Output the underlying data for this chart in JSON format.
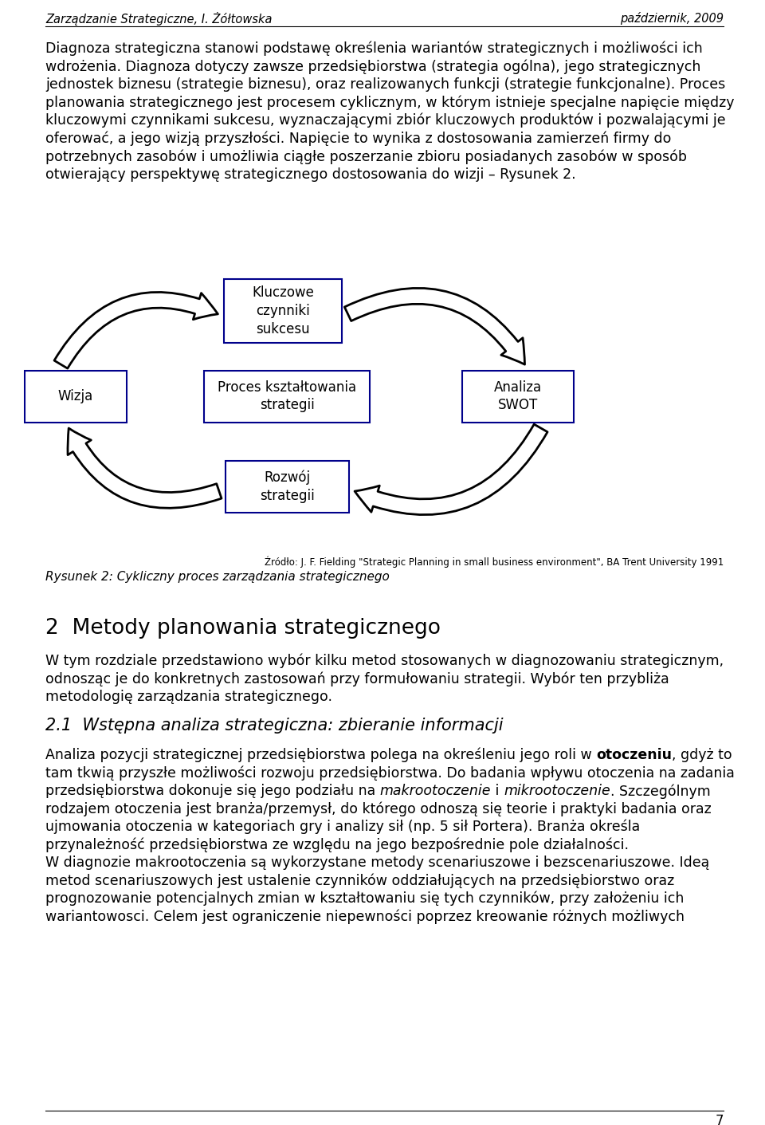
{
  "header_left": "Zarządzanie Strategiczne, I. Żółtowska",
  "header_right": "październik, 2009",
  "para1_lines": [
    "Diagnoza strategiczna stanowi podstawę określenia wariantów strategicznych i możliwości ich",
    "wdrożenia. Diagnoza dotyczy zawsze przedsiębiorstwa (strategia ogólna), jego strategicznych",
    "jednostek biznesu (strategie biznesu), oraz realizowanych funkcji (strategie funkcjonalne). Proces",
    "planowania strategicznego jest procesem cyklicznym, w którym istnieje specjalne napięcie między",
    "kluczowymi czynnikami sukcesu, wyznaczającymi zbiór kluczowych produktów i pozwalającymi je",
    "oferować, a jego wizją przyszłości. Napięcie to wynika z dostosowania zamierzeń firmy do",
    "potrzebnych zasobów i umożliwia ciągłe poszerzanie zbioru posiadanych zasobów w sposób",
    "otwierający perspektywę strategicznego dostosowania do wizji – Rysunek 2."
  ],
  "box_kluczowe": "Kluczowe\nczynniki\nsukcesu",
  "box_wizja": "Wizja",
  "box_proces": "Proces kształtowania\nstrategii",
  "box_analiza": "Analiza\nSWOT",
  "box_rozwoj": "Rozwój\nstrategii",
  "source_text": "Źródło: J. F. Fielding \"Strategic Planning in small business environment\", BA Trent University 1991",
  "caption": "Rysunek 2: Cykliczny proces zarządzania strategicznego",
  "section2_title": "2  Metody planowania strategicznego",
  "section2_para_lines": [
    "W tym rozdziale przedstawiono wybór kilku metod stosowanych w diagnozowaniu strategicznym,",
    "odnosząc je do konkretnych zastosowań przy formułowaniu strategii. Wybór ten przybliża",
    "metodologię zarządzania strategicznego."
  ],
  "section21_title": "2.1  Wstępna analiza strategiczna: zbieranie informacji",
  "section21_body_lines": [
    [
      [
        "Analiza pozycji strategicznej przedsiębiorstwa polega na określeniu jego roli w ",
        "n",
        "n"
      ],
      [
        "otoczeniu",
        "b",
        "n"
      ],
      [
        ", gdyż to",
        "n",
        "n"
      ]
    ],
    [
      [
        "tam tkwią przyszłe możliwości rozwoju przedsiębiorstwa. Do badania wpływu otoczenia na zadania",
        "n",
        "n"
      ]
    ],
    [
      [
        "przedsiębiorstwa dokonuje się jego podziału na ",
        "n",
        "n"
      ],
      [
        "makrootoczenie",
        "n",
        "i"
      ],
      [
        " i ",
        "n",
        "n"
      ],
      [
        "mikrootoczenie",
        "n",
        "i"
      ],
      [
        ". Szczególnym",
        "n",
        "n"
      ]
    ],
    [
      [
        "rodzajem otoczenia jest branża/przemysł, do którego odnoszą się teorie i praktyki badania oraz",
        "n",
        "n"
      ]
    ],
    [
      [
        "ujmowania otoczenia w kategoriach gry i analizy sił (np. 5 sił Portera). Branża określa",
        "n",
        "n"
      ]
    ],
    [
      [
        "przynależność przedsiębiorstwa ze względu na jego bezpośrednie pole działalności.",
        "n",
        "n"
      ]
    ],
    [
      [
        "W diagnozie makrootoczenia są wykorzystane metody scenariuszowe i bezscenariuszowe. Ideą",
        "n",
        "n"
      ]
    ],
    [
      [
        "metod scenariuszowych jest ustalenie czynników oddziałujących na przedsiębiorstwo oraz",
        "n",
        "n"
      ]
    ],
    [
      [
        "prognozowanie potencjalnych zmian w kształtowaniu się tych czynników, przy założeniu ich",
        "n",
        "n"
      ]
    ],
    [
      [
        "wariantowosci. Celem jest ograniczenie niepewności poprzez kreowanie różnych możliwych",
        "n",
        "n"
      ]
    ]
  ],
  "page_number": "7",
  "box_color": "#00008B",
  "bg_color": "#ffffff",
  "text_color": "#000000",
  "fs_body": 12.5,
  "fs_header": 10.5,
  "fs_section2": 19,
  "fs_section21": 15,
  "lh_body": 22.5,
  "ml": 57,
  "mr": 908
}
